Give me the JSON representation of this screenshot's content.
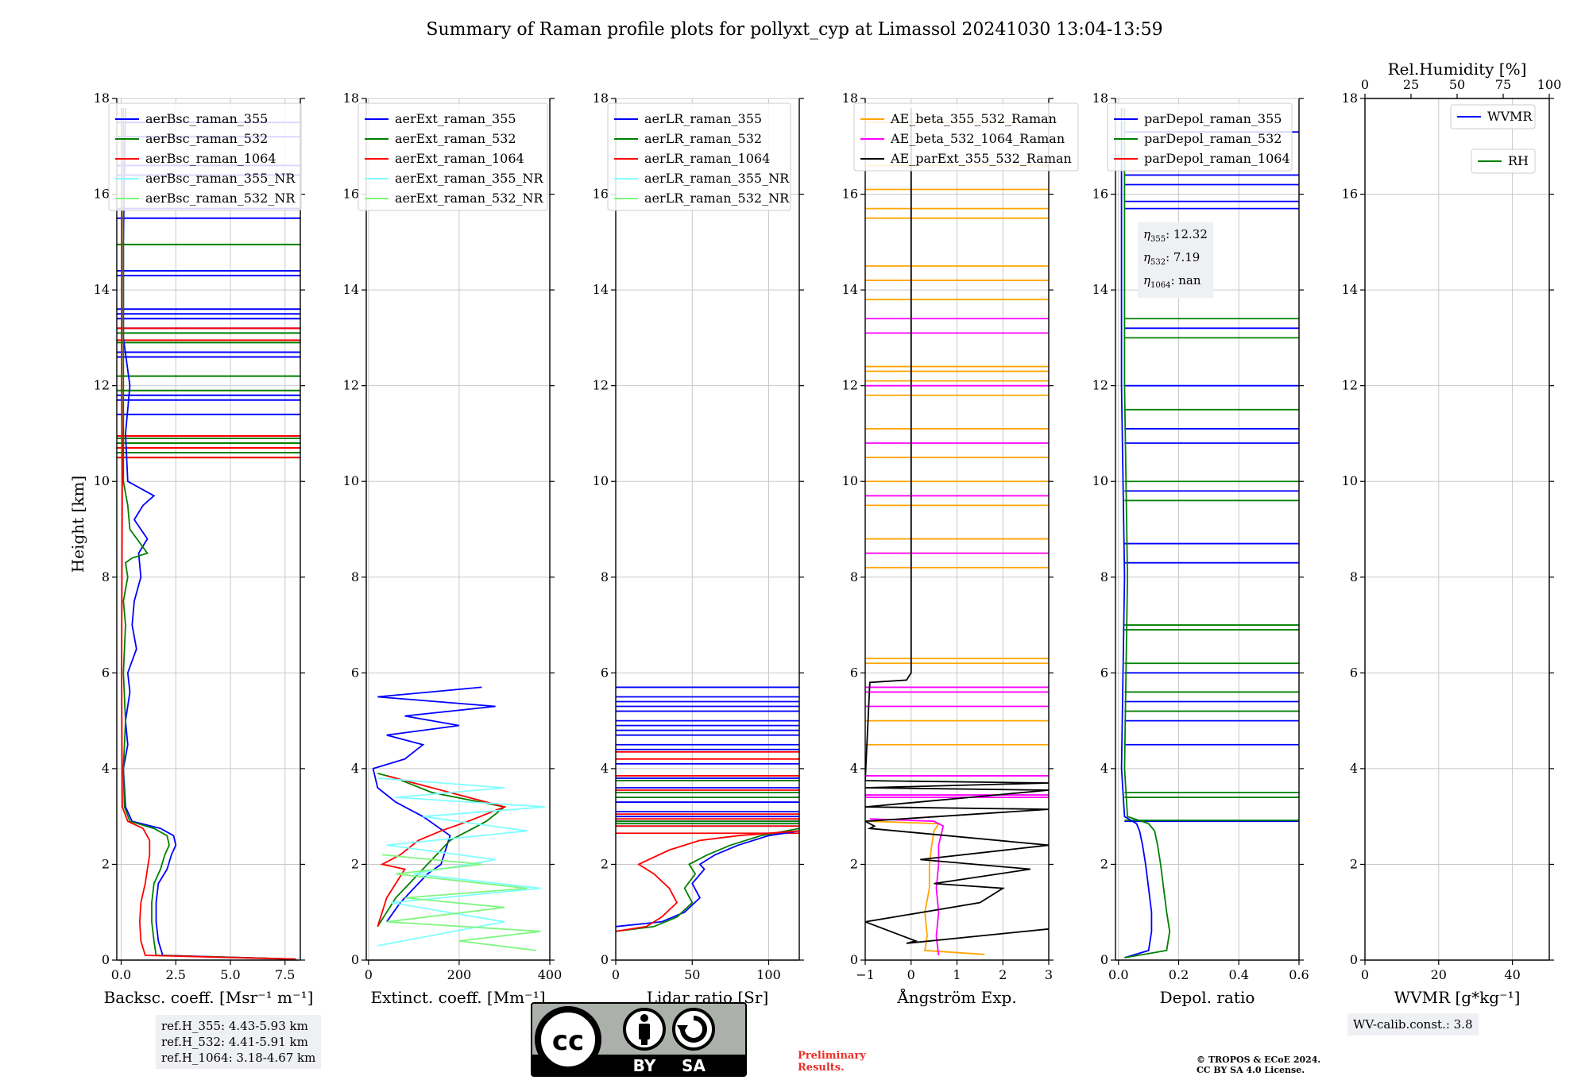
{
  "title": "Summary of Raman profile plots for pollyxt_cyp at Limassol 20241030 13:04-13:59",
  "colors": {
    "blue": "#0000ff",
    "green": "#008000",
    "red": "#ff0000",
    "cyan": "#7fffff",
    "lightgreen": "#7ff77f",
    "orange": "#ffa500",
    "magenta": "#ff00ff",
    "black": "#000000"
  },
  "chart_data": [
    {
      "type": "line",
      "xlabel": "Backsc. coeff. [Msr⁻¹ m⁻¹]",
      "ylabel": "Height [km]",
      "xlim": [
        -0.2,
        8.2
      ],
      "ylim": [
        0,
        18
      ],
      "xticks": [
        0,
        2.5,
        5,
        7.5
      ],
      "xtick_labels": [
        "0.0",
        "2.5",
        "5.0",
        "7.5"
      ],
      "yticks": [
        0,
        2,
        4,
        6,
        8,
        10,
        12,
        14,
        16,
        18
      ],
      "legend": [
        "aerBsc_raman_355",
        "aerBsc_raman_532",
        "aerBsc_raman_1064",
        "aerBsc_raman_355_NR",
        "aerBsc_raman_532_NR"
      ],
      "series": [
        {
          "name": "aerBsc_raman_355",
          "color": "blue",
          "x": [
            8.0,
            1.9,
            1.7,
            1.6,
            1.6,
            1.7,
            2.1,
            2.3,
            2.5,
            2.4,
            1.8,
            0.5,
            0.2,
            0.1,
            0.3,
            0.2,
            0.4,
            0.3,
            0.7,
            0.5,
            0.6,
            0.9,
            0.8,
            1.2,
            0.6,
            1.0,
            1.5,
            0.3,
            0.2,
            0.4,
            0.1,
            0.1,
            0.2
          ],
          "y": [
            0.02,
            0.1,
            0.4,
            0.8,
            1.2,
            1.6,
            1.9,
            2.2,
            2.4,
            2.6,
            2.75,
            2.9,
            3.2,
            4.0,
            4.5,
            5.0,
            5.6,
            6.0,
            6.5,
            7.0,
            7.5,
            8.0,
            8.5,
            8.8,
            9.2,
            9.5,
            9.7,
            10.0,
            11.0,
            12.0,
            13.0,
            15.0,
            17.8
          ]
        },
        {
          "name": "aerBsc_raman_532",
          "color": "green",
          "x": [
            8.0,
            1.6,
            1.5,
            1.4,
            1.4,
            1.5,
            1.8,
            2.0,
            2.2,
            2.1,
            1.5,
            0.4,
            0.15,
            0.1,
            0.2,
            0.1,
            0.2,
            0.1,
            0.3,
            0.2,
            0.5,
            1.2,
            0.4,
            0.3,
            0.1,
            0.1,
            0.1
          ],
          "y": [
            0.02,
            0.1,
            0.4,
            0.8,
            1.2,
            1.6,
            1.9,
            2.2,
            2.4,
            2.6,
            2.75,
            2.9,
            3.2,
            4.0,
            5.0,
            6.0,
            7.0,
            7.5,
            8.0,
            8.3,
            8.4,
            8.5,
            9.0,
            9.5,
            10.0,
            13.0,
            17.8
          ]
        },
        {
          "name": "aerBsc_raman_1064",
          "color": "red",
          "x": [
            8.0,
            1.1,
            0.9,
            0.85,
            0.9,
            1.1,
            1.2,
            1.3,
            1.3,
            1.0,
            0.3,
            0.05,
            0.02,
            0.05,
            0.02,
            0.02
          ],
          "y": [
            0.02,
            0.1,
            0.4,
            0.8,
            1.2,
            1.6,
            1.9,
            2.2,
            2.5,
            2.75,
            2.9,
            3.2,
            6.0,
            10.0,
            12.0,
            17.8
          ]
        }
      ],
      "spikes": [
        {
          "color": "blue",
          "h": [
            15.5,
            15.7,
            14.4,
            14.3,
            13.6,
            13.5,
            13.4,
            13.2,
            12.7,
            12.6,
            11.8,
            11.7,
            11.4,
            16.6,
            16.4,
            17.2,
            17.5
          ]
        },
        {
          "color": "green",
          "h": [
            14.95,
            13.1,
            12.9,
            12.2,
            11.9,
            10.9,
            10.8,
            10.6,
            10.5
          ]
        },
        {
          "color": "red",
          "h": [
            13.2,
            12.95,
            10.95,
            10.7,
            10.5
          ]
        }
      ],
      "legend_position": "top"
    },
    {
      "type": "line",
      "xlabel": "Extinct. coeff. [Mm⁻¹]",
      "xlim": [
        -5,
        400
      ],
      "ylim": [
        0,
        18
      ],
      "xticks": [
        0,
        200,
        400
      ],
      "xtick_labels": [
        "0",
        "200",
        "400"
      ],
      "yticks": [
        0,
        2,
        4,
        6,
        8,
        10,
        12,
        14,
        16,
        18
      ],
      "legend": [
        "aerExt_raman_355",
        "aerExt_raman_532",
        "aerExt_raman_1064",
        "aerExt_raman_355_NR",
        "aerExt_raman_532_NR"
      ],
      "series": [
        {
          "name": "aerExt_raman_355",
          "color": "blue",
          "x": [
            40,
            70,
            100,
            130,
            160,
            170,
            180,
            150,
            120,
            60,
            20,
            10,
            80,
            120,
            40,
            200,
            80,
            280,
            20,
            250
          ],
          "y": [
            0.8,
            1.2,
            1.5,
            1.8,
            2.0,
            2.3,
            2.6,
            2.8,
            3.0,
            3.3,
            3.6,
            4.0,
            4.2,
            4.5,
            4.7,
            4.9,
            5.1,
            5.3,
            5.5,
            5.7
          ]
        },
        {
          "name": "aerExt_raman_532",
          "color": "green",
          "x": [
            20,
            40,
            60,
            90,
            120,
            140,
            160,
            180,
            220,
            260,
            300,
            140,
            60,
            20
          ],
          "y": [
            0.7,
            1.0,
            1.3,
            1.6,
            1.9,
            2.1,
            2.3,
            2.5,
            2.7,
            2.9,
            3.2,
            3.5,
            3.8,
            3.9
          ]
        },
        {
          "name": "aerExt_raman_1064",
          "color": "red",
          "x": [
            20,
            30,
            40,
            60,
            80,
            30,
            70,
            110,
            160,
            220,
            300,
            180,
            100,
            40
          ],
          "y": [
            0.7,
            1.0,
            1.3,
            1.6,
            1.9,
            2.0,
            2.2,
            2.5,
            2.7,
            2.9,
            3.2,
            3.5,
            3.7,
            3.85
          ]
        },
        {
          "name": "aerExt_raman_355_NR",
          "color": "cyan",
          "x": [
            20,
            300,
            50,
            380,
            100,
            280,
            40,
            350,
            120,
            390,
            60,
            300,
            20
          ],
          "y": [
            0.3,
            0.8,
            1.2,
            1.5,
            1.8,
            2.1,
            2.4,
            2.7,
            3.0,
            3.2,
            3.4,
            3.6,
            3.8
          ]
        },
        {
          "name": "aerExt_raman_532_NR",
          "color": "lightgreen",
          "x": [
            370,
            200,
            380,
            40,
            300,
            80,
            350,
            60,
            250,
            30
          ],
          "y": [
            0.2,
            0.4,
            0.6,
            0.8,
            1.1,
            1.3,
            1.5,
            1.8,
            2.0,
            2.2
          ]
        }
      ],
      "legend_position": "top"
    },
    {
      "type": "line",
      "xlabel": "Lidar ratio [Sr]",
      "xlim": [
        0,
        120
      ],
      "ylim": [
        0,
        18
      ],
      "xticks": [
        0,
        50,
        100
      ],
      "xtick_labels": [
        "0",
        "50",
        "100"
      ],
      "yticks": [
        0,
        2,
        4,
        6,
        8,
        10,
        12,
        14,
        16,
        18
      ],
      "legend": [
        "aerLR_raman_355",
        "aerLR_raman_532",
        "aerLR_raman_1064",
        "aerLR_raman_355_NR",
        "aerLR_raman_532_NR"
      ],
      "series": [
        {
          "name": "aerLR_raman_355",
          "color": "blue",
          "x": [
            0,
            30,
            45,
            55,
            50,
            58,
            55,
            65,
            80,
            100,
            120
          ],
          "y": [
            0.7,
            0.8,
            1.0,
            1.3,
            1.6,
            1.9,
            2.0,
            2.2,
            2.4,
            2.6,
            2.7
          ]
        },
        {
          "name": "aerLR_raman_532",
          "color": "green",
          "x": [
            0,
            25,
            40,
            50,
            45,
            52,
            48,
            60,
            75,
            95,
            120
          ],
          "y": [
            0.6,
            0.7,
            0.9,
            1.2,
            1.5,
            1.8,
            2.0,
            2.2,
            2.4,
            2.6,
            2.75
          ]
        },
        {
          "name": "aerLR_raman_1064",
          "color": "red",
          "x": [
            0,
            20,
            30,
            40,
            35,
            25,
            15,
            35,
            55,
            80,
            120
          ],
          "y": [
            0.6,
            0.7,
            0.9,
            1.2,
            1.5,
            1.8,
            2.0,
            2.3,
            2.5,
            2.6,
            2.7
          ]
        }
      ],
      "hlines": [
        {
          "color": "blue",
          "h": [
            5.7,
            5.5,
            5.4,
            5.3,
            5.2,
            5.0,
            4.9,
            4.8,
            4.7,
            4.5,
            4.4,
            4.1,
            3.8,
            3.6,
            3.3,
            3.1,
            3.0,
            2.9,
            2.8
          ]
        },
        {
          "color": "green",
          "h": [
            3.75,
            3.5,
            3.4,
            2.9,
            2.85
          ]
        },
        {
          "color": "red",
          "h": [
            4.35,
            4.2,
            3.85,
            3.55,
            3.05,
            2.95,
            2.8,
            2.65
          ]
        }
      ],
      "legend_position": "top"
    },
    {
      "type": "line",
      "xlabel": "Ångström Exp.",
      "xlim": [
        -1,
        3
      ],
      "ylim": [
        0,
        18
      ],
      "xticks": [
        -1,
        0,
        1,
        2,
        3
      ],
      "xtick_labels": [
        "−1",
        "0",
        "1",
        "2",
        "3"
      ],
      "yticks": [
        0,
        2,
        4,
        6,
        8,
        10,
        12,
        14,
        16,
        18
      ],
      "legend": [
        "AE_beta_355_532_Raman",
        "AE_beta_532_1064_Raman",
        "AE_parExt_355_532_Raman"
      ],
      "series": [
        {
          "name": "AE_beta_355_532_Raman",
          "color": "orange",
          "x": [
            1.6,
            0.3,
            0.35,
            0.3,
            0.4,
            0.4,
            0.45,
            0.5,
            0.6,
            -0.9
          ],
          "y": [
            0.12,
            0.2,
            0.5,
            1.0,
            1.5,
            2.0,
            2.4,
            2.7,
            2.85,
            2.9
          ]
        },
        {
          "name": "AE_beta_532_1064_Raman",
          "color": "magenta",
          "x": [
            0.6,
            0.55,
            0.6,
            0.55,
            0.6,
            0.6,
            0.65,
            0.7,
            0.5,
            -0.9
          ],
          "y": [
            0.1,
            0.5,
            1.0,
            1.5,
            2.0,
            2.4,
            2.6,
            2.8,
            2.9,
            2.95
          ]
        },
        {
          "name": "AE_parExt_355_532_Raman",
          "color": "black",
          "x": [
            3,
            -0.1,
            0.1,
            -1,
            1.5,
            2.0,
            0.5,
            2.6,
            0.2,
            3,
            -0.9,
            -0.8,
            -1,
            3,
            -1,
            3,
            -1,
            3,
            -1,
            -0.9,
            -0.1,
            0,
            0,
            0
          ],
          "y": [
            0.65,
            0.35,
            0.4,
            0.8,
            1.2,
            1.5,
            1.6,
            1.9,
            2.1,
            2.4,
            2.75,
            2.8,
            2.9,
            3.15,
            3.2,
            3.55,
            3.6,
            3.7,
            3.75,
            5.8,
            5.85,
            6.0,
            15.0,
            17.8
          ]
        }
      ],
      "hlines": [
        {
          "color": "orange",
          "h": [
            17.5,
            16.6,
            16.1,
            15.7,
            15.5,
            14.5,
            14.2,
            13.8,
            12.4,
            12.3,
            12.1,
            11.8,
            11.1,
            10.5,
            10.0,
            9.5,
            8.8,
            8.5,
            8.2,
            6.3,
            6.2,
            5.0,
            4.5
          ]
        },
        {
          "color": "magenta",
          "h": [
            13.4,
            13.1,
            12.0,
            10.8,
            9.7,
            8.5,
            5.7,
            5.6,
            5.3,
            3.85,
            3.45,
            3.4
          ]
        }
      ],
      "legend_position": "top"
    },
    {
      "type": "line",
      "xlabel": "Depol. ratio",
      "xlim": [
        -0.01,
        0.6
      ],
      "ylim": [
        0,
        18
      ],
      "xticks": [
        0,
        0.2,
        0.4,
        0.6
      ],
      "xtick_labels": [
        "0.0",
        "0.2",
        "0.4",
        "0.6"
      ],
      "yticks": [
        0,
        2,
        4,
        6,
        8,
        10,
        12,
        14,
        16,
        18
      ],
      "legend": [
        "parDepol_raman_355",
        "parDepol_raman_532",
        "parDepol_raman_1064"
      ],
      "annotations": {
        "eta_355": "12.32",
        "eta_532": "7.19",
        "eta_1064": "nan"
      },
      "series": [
        {
          "name": "parDepol_raman_355",
          "color": "blue",
          "x": [
            0.02,
            0.1,
            0.11,
            0.11,
            0.1,
            0.09,
            0.08,
            0.07,
            0.06,
            0.02,
            0.01,
            0.02,
            0.01,
            0.01
          ],
          "y": [
            0.05,
            0.2,
            0.6,
            1.0,
            1.5,
            2.0,
            2.4,
            2.7,
            2.85,
            3.0,
            4.0,
            8.0,
            12.0,
            17.8
          ]
        },
        {
          "name": "parDepol_raman_532",
          "color": "green",
          "x": [
            0.02,
            0.16,
            0.17,
            0.16,
            0.15,
            0.14,
            0.13,
            0.12,
            0.1,
            0.03,
            0.02,
            0.03,
            0.02,
            0.02
          ],
          "y": [
            0.05,
            0.2,
            0.6,
            1.0,
            1.5,
            2.0,
            2.4,
            2.7,
            2.85,
            3.0,
            4.0,
            8.0,
            12.0,
            17.8
          ]
        }
      ],
      "hlines": [
        {
          "color": "blue",
          "h": [
            17.3,
            16.4,
            16.2,
            15.85,
            15.7,
            13.2,
            12.0,
            11.1,
            10.8,
            9.8,
            8.7,
            8.3,
            6.0,
            5.4,
            5.0,
            4.5,
            2.9
          ]
        },
        {
          "color": "green",
          "h": [
            13.4,
            13.0,
            11.5,
            10.0,
            9.6,
            7.0,
            6.9,
            6.2,
            5.6,
            5.2,
            3.5,
            3.4,
            2.92
          ]
        }
      ],
      "legend_position": "top"
    },
    {
      "type": "line",
      "xlabel": "WVMR [g*kg⁻¹]",
      "top_xlabel": "Rel.Humidity [%]",
      "xlim": [
        0,
        50
      ],
      "top_xlim": [
        0,
        100
      ],
      "ylim": [
        0,
        18
      ],
      "xticks": [
        0,
        20,
        40
      ],
      "xtick_labels": [
        "0",
        "20",
        "40"
      ],
      "top_xticks": [
        0,
        25,
        50,
        75,
        100
      ],
      "top_xtick_labels": [
        "0",
        "25",
        "50",
        "75",
        "100"
      ],
      "yticks": [
        0,
        2,
        4,
        6,
        8,
        10,
        12,
        14,
        16,
        18
      ],
      "legend": [
        "WVMR",
        "RH"
      ],
      "series": [],
      "legend_position": "top-right"
    }
  ],
  "ytick_labels": [
    "0",
    "2",
    "4",
    "6",
    "8",
    "10",
    "12",
    "14",
    "16",
    "18"
  ],
  "refH": {
    "line1": "ref.H_355: 4.43-5.93 km",
    "line2": "ref.H_532: 4.41-5.91 km",
    "line3": "ref.H_1064: 3.18-4.67 km"
  },
  "eta": {
    "label_355": ": 12.32",
    "label_532": ": 7.19",
    "label_1064": ": nan"
  },
  "wv_calib": "WV-calib.const.: 3.8",
  "license": {
    "cc": "cc",
    "by": "BY",
    "sa": "SA"
  },
  "preliminary": {
    "line1": "Preliminary",
    "line2": "Results."
  },
  "copyright": {
    "line1": "© TROPOS & ECoE 2024.",
    "line2": "CC BY SA 4.0 License."
  }
}
